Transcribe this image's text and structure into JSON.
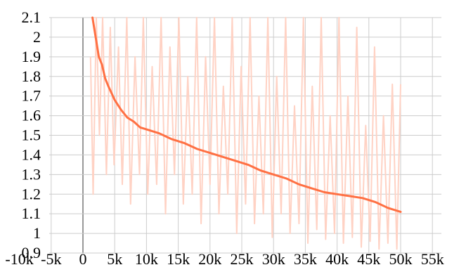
{
  "chart_data": {
    "type": "line",
    "title": "",
    "xlabel": "",
    "ylabel": "",
    "xlim": [
      -10000,
      55000
    ],
    "ylim": [
      0.9,
      2.1
    ],
    "grid": true,
    "x_ticks": [
      -10000,
      -5000,
      0,
      5000,
      10000,
      15000,
      20000,
      25000,
      30000,
      35000,
      40000,
      45000,
      50000,
      55000
    ],
    "x_tick_labels": [
      "-10k",
      "-5k",
      "0",
      "5k",
      "10k",
      "15k",
      "20k",
      "25k",
      "30k",
      "35k",
      "40k",
      "45k",
      "50k",
      "55k"
    ],
    "y_ticks": [
      0.9,
      1,
      1.1,
      1.2,
      1.3,
      1.4,
      1.5,
      1.6,
      1.7,
      1.8,
      1.9,
      2,
      2.1
    ],
    "y_tick_labels": [
      "0.9",
      "1",
      "1.1",
      "1.2",
      "1.3",
      "1.4",
      "1.5",
      "1.6",
      "1.7",
      "1.8",
      "1.9",
      "2",
      "2.1"
    ],
    "colors": {
      "smoothed": "#ff7043",
      "raw": "#ffd2c4"
    },
    "series": [
      {
        "role": "smoothed",
        "x": [
          1500,
          2000,
          2500,
          3000,
          3500,
          4000,
          5000,
          6000,
          7000,
          8000,
          9000,
          10000,
          12000,
          14000,
          16000,
          18000,
          20000,
          22000,
          24000,
          26000,
          28000,
          30000,
          32000,
          34000,
          36000,
          38000,
          40000,
          42000,
          44000,
          46000,
          48000,
          50000
        ],
        "y": [
          2.1,
          2.0,
          1.9,
          1.86,
          1.79,
          1.75,
          1.68,
          1.63,
          1.59,
          1.57,
          1.54,
          1.53,
          1.51,
          1.48,
          1.46,
          1.43,
          1.41,
          1.39,
          1.37,
          1.35,
          1.32,
          1.3,
          1.28,
          1.25,
          1.23,
          1.21,
          1.2,
          1.19,
          1.18,
          1.16,
          1.13,
          1.11
        ]
      },
      {
        "role": "raw",
        "x": [
          1200,
          1600,
          2100,
          2600,
          3100,
          3700,
          4300,
          4900,
          5600,
          6200,
          6900,
          7500,
          8200,
          8900,
          9500,
          10200,
          10900,
          11600,
          12300,
          13000,
          13700,
          14400,
          15100,
          15800,
          16500,
          17200,
          17900,
          18600,
          19300,
          20000,
          20700,
          21400,
          22100,
          22800,
          23500,
          24200,
          24900,
          25600,
          26300,
          27000,
          27700,
          28400,
          29100,
          29800,
          30500,
          31200,
          31900,
          32600,
          33300,
          34000,
          34700,
          35400,
          36100,
          36800,
          37500,
          38200,
          38900,
          39600,
          40300,
          41000,
          41700,
          42400,
          43100,
          43800,
          44500,
          45200,
          45900,
          46600,
          47300,
          48000,
          48700,
          49400,
          50000
        ],
        "y": [
          1.9,
          1.2,
          2.1,
          1.5,
          2.1,
          1.3,
          2.05,
          1.35,
          1.95,
          1.25,
          2.1,
          1.15,
          1.9,
          1.3,
          2.1,
          1.2,
          1.85,
          1.25,
          2.1,
          1.1,
          1.95,
          1.3,
          2.1,
          1.15,
          1.8,
          1.2,
          2.1,
          1.05,
          1.9,
          1.25,
          2.1,
          1.1,
          1.75,
          1.2,
          2.1,
          1.0,
          1.85,
          1.15,
          2.1,
          1.05,
          1.7,
          1.1,
          2.1,
          0.98,
          1.8,
          1.1,
          2.1,
          1.0,
          1.65,
          1.05,
          2.1,
          0.95,
          1.75,
          1.02,
          2.1,
          0.97,
          1.6,
          1.0,
          2.1,
          0.95,
          1.7,
          0.98,
          2.05,
          0.93,
          1.55,
          0.96,
          1.95,
          0.92,
          1.6,
          0.95,
          1.76,
          0.92,
          1.76
        ]
      }
    ]
  }
}
